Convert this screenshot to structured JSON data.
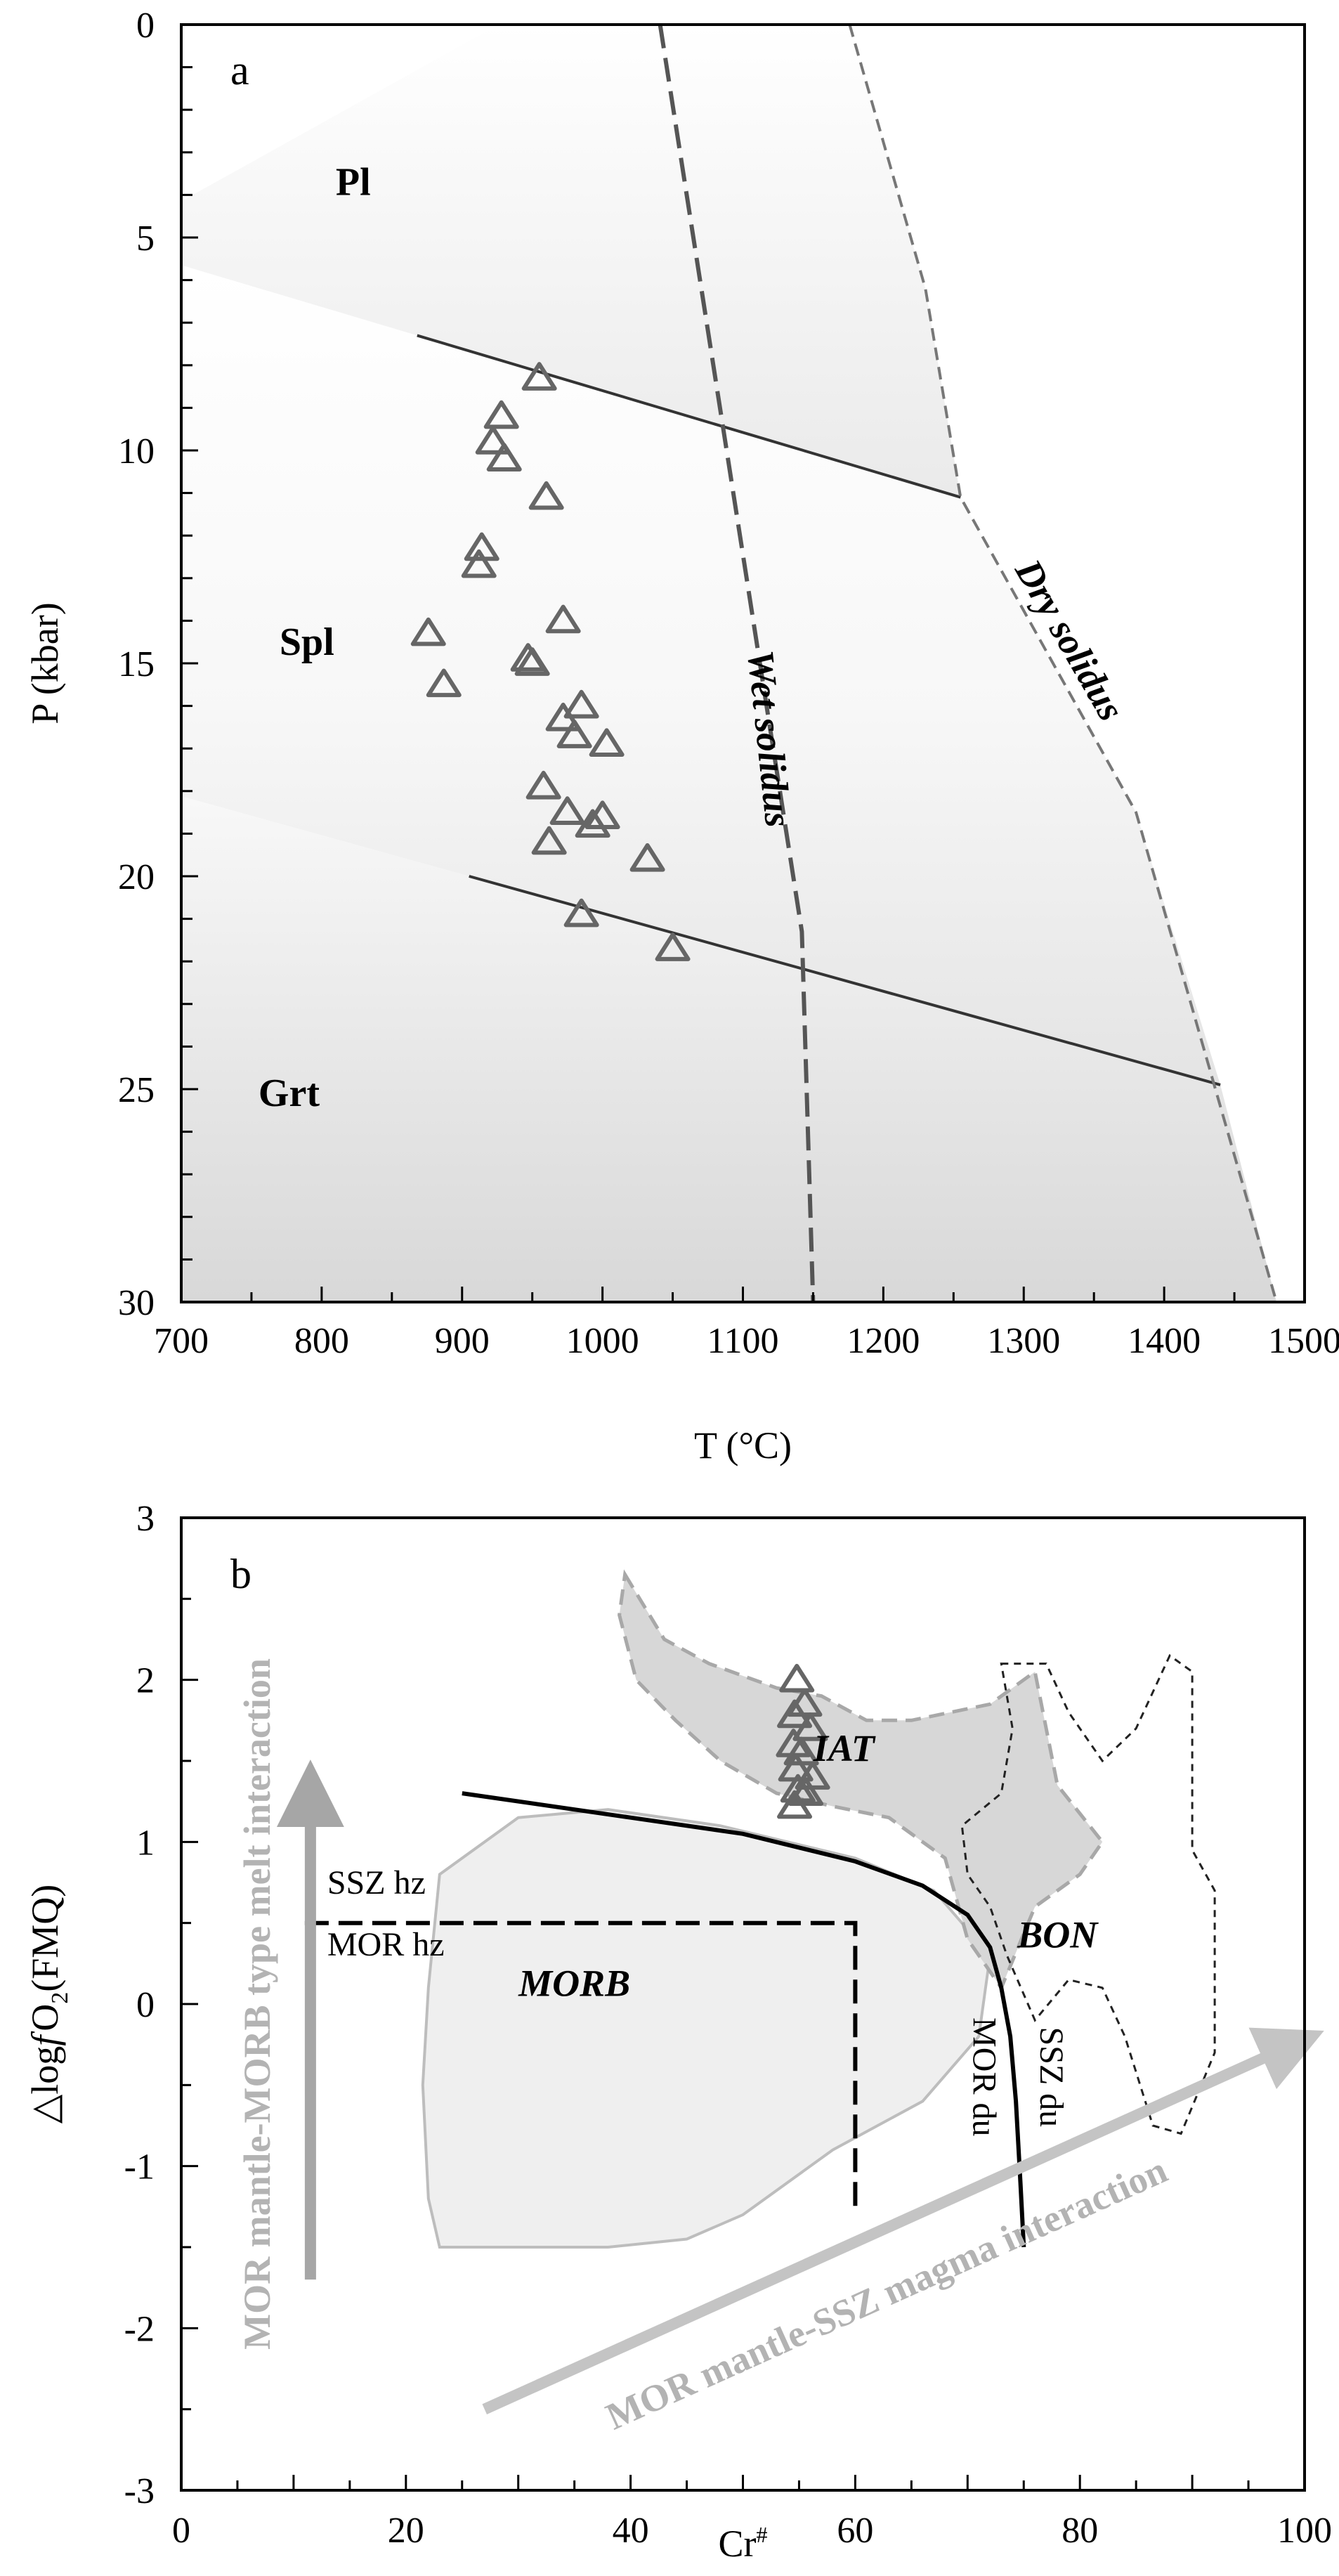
{
  "chart_data": [
    {
      "panel": "a",
      "type": "scatter",
      "title": "",
      "xlabel": "T (°C)",
      "ylabel": "P (kbar)",
      "xlim": [
        700,
        1500
      ],
      "ylim": [
        0,
        30
      ],
      "y_inverted": true,
      "x_ticks": [
        700,
        800,
        900,
        1000,
        1100,
        1200,
        1300,
        1400,
        1500
      ],
      "y_ticks": [
        0,
        5,
        10,
        15,
        20,
        25,
        30
      ],
      "marker": "open-triangle",
      "marker_color": "#666666",
      "points": [
        {
          "x": 955,
          "y": 8.3
        },
        {
          "x": 928,
          "y": 9.2
        },
        {
          "x": 922,
          "y": 9.8
        },
        {
          "x": 930,
          "y": 10.2
        },
        {
          "x": 960,
          "y": 11.1
        },
        {
          "x": 914,
          "y": 12.3
        },
        {
          "x": 912,
          "y": 12.7
        },
        {
          "x": 972,
          "y": 14.0
        },
        {
          "x": 876,
          "y": 14.3
        },
        {
          "x": 947,
          "y": 14.9
        },
        {
          "x": 950,
          "y": 15.0
        },
        {
          "x": 887,
          "y": 15.5
        },
        {
          "x": 985,
          "y": 16.0
        },
        {
          "x": 972,
          "y": 16.3
        },
        {
          "x": 980,
          "y": 16.7
        },
        {
          "x": 1003,
          "y": 16.9
        },
        {
          "x": 958,
          "y": 17.9
        },
        {
          "x": 975,
          "y": 18.5
        },
        {
          "x": 1000,
          "y": 18.6
        },
        {
          "x": 993,
          "y": 18.8
        },
        {
          "x": 962,
          "y": 19.2
        },
        {
          "x": 1032,
          "y": 19.6
        },
        {
          "x": 985,
          "y": 20.9
        },
        {
          "x": 1050,
          "y": 21.7
        }
      ],
      "boundaries": [
        {
          "name": "plagioclase-spinel",
          "points": [
            [
              868,
              7.3
            ],
            [
              1255,
              11.1
            ]
          ],
          "style": "solid"
        },
        {
          "name": "spinel-garnet",
          "points": [
            [
              905,
              20.0
            ],
            [
              1440,
              24.9
            ]
          ],
          "style": "solid"
        },
        {
          "name": "wet-solidus",
          "points": [
            [
              1041,
              0
            ],
            [
              1142,
              21.3
            ],
            [
              1150,
              30
            ]
          ],
          "style": "dashed"
        },
        {
          "name": "dry-solidus",
          "points": [
            [
              1176,
              0
            ],
            [
              1230,
              6.2
            ],
            [
              1255,
              11.1
            ],
            [
              1380,
              18.5
            ],
            [
              1480,
              30
            ]
          ],
          "style": "dashed"
        }
      ],
      "field_labels": [
        {
          "text": "Pl",
          "x": 810,
          "y": 4.0
        },
        {
          "text": "Spl",
          "x": 770,
          "y": 14.8
        },
        {
          "text": "Grt",
          "x": 755,
          "y": 25.4
        }
      ],
      "curve_labels": [
        {
          "text": "Wet solidus",
          "x": 1110,
          "y": 16.8,
          "angle": 84
        },
        {
          "text": "Dry solidus",
          "x": 1325,
          "y": 14.6,
          "angle": 60
        }
      ]
    },
    {
      "panel": "b",
      "type": "scatter",
      "title": "",
      "xlabel": "Cr#",
      "ylabel": "△log fO2(FMQ)",
      "xlim": [
        0,
        100
      ],
      "ylim": [
        -3,
        3
      ],
      "x_ticks": [
        0,
        20,
        40,
        60,
        80,
        100
      ],
      "y_ticks": [
        -3,
        -2,
        -1,
        0,
        1,
        2,
        3
      ],
      "marker": "open-triangle",
      "marker_color": "#666666",
      "points": [
        {
          "x": 54.8,
          "y": 2.0
        },
        {
          "x": 55.5,
          "y": 1.85
        },
        {
          "x": 54.6,
          "y": 1.78
        },
        {
          "x": 56.0,
          "y": 1.7
        },
        {
          "x": 54.5,
          "y": 1.6
        },
        {
          "x": 55.2,
          "y": 1.55
        },
        {
          "x": 54.7,
          "y": 1.45
        },
        {
          "x": 56.2,
          "y": 1.4
        },
        {
          "x": 54.9,
          "y": 1.32
        },
        {
          "x": 55.6,
          "y": 1.3
        },
        {
          "x": 54.6,
          "y": 1.22
        }
      ],
      "fields": [
        {
          "text": "MORB",
          "style": "solid-grey",
          "label_pos": [
            35,
            0.05
          ],
          "points": [
            [
              23,
              0.8
            ],
            [
              30,
              1.15
            ],
            [
              38,
              1.2
            ],
            [
              48,
              1.1
            ],
            [
              60,
              0.9
            ],
            [
              67,
              0.7
            ],
            [
              72,
              0.3
            ],
            [
              71,
              -0.2
            ],
            [
              66,
              -0.6
            ],
            [
              58,
              -0.9
            ],
            [
              50,
              -1.3
            ],
            [
              45,
              -1.45
            ],
            [
              38,
              -1.5
            ],
            [
              30,
              -1.5
            ],
            [
              23,
              -1.5
            ],
            [
              22,
              -1.2
            ],
            [
              21.5,
              -0.5
            ],
            [
              22,
              0.1
            ]
          ]
        },
        {
          "text": "IAT",
          "style": "dashed-grey",
          "label_pos": [
            59,
            1.5
          ],
          "points": [
            [
              39.5,
              2.65
            ],
            [
              43,
              2.25
            ],
            [
              47,
              2.1
            ],
            [
              53,
              1.95
            ],
            [
              57,
              1.9
            ],
            [
              61,
              1.75
            ],
            [
              65,
              1.75
            ],
            [
              72,
              1.85
            ],
            [
              76,
              2.05
            ],
            [
              78,
              1.35
            ],
            [
              82,
              1.0
            ],
            [
              80,
              0.8
            ],
            [
              76,
              0.6
            ],
            [
              73,
              0.1
            ],
            [
              70,
              0.4
            ],
            [
              68,
              0.9
            ],
            [
              63,
              1.15
            ],
            [
              58,
              1.22
            ],
            [
              53,
              1.3
            ],
            [
              48,
              1.5
            ],
            [
              44,
              1.75
            ],
            [
              40.5,
              2.0
            ],
            [
              39,
              2.4
            ]
          ]
        },
        {
          "text": "BON",
          "style": "dashed-black",
          "label_pos": [
            78,
            0.35
          ],
          "points": [
            [
              73,
              2.1
            ],
            [
              77,
              2.1
            ],
            [
              79,
              1.8
            ],
            [
              82,
              1.5
            ],
            [
              85,
              1.7
            ],
            [
              88,
              2.15
            ],
            [
              90,
              2.05
            ],
            [
              90,
              0.95
            ],
            [
              92,
              0.7
            ],
            [
              92,
              -0.3
            ],
            [
              89,
              -0.8
            ],
            [
              86.5,
              -0.75
            ],
            [
              84,
              -0.2
            ],
            [
              82,
              0.1
            ],
            [
              79,
              0.15
            ],
            [
              76,
              -0.1
            ],
            [
              73.5,
              0.3
            ],
            [
              72,
              0.6
            ],
            [
              70,
              0.8
            ],
            [
              69.5,
              1.1
            ],
            [
              73,
              1.3
            ],
            [
              74,
              1.7
            ]
          ]
        }
      ],
      "boundaries": [
        {
          "name": "dunite-curve",
          "style": "solid-black",
          "points": [
            [
              25,
              1.3
            ],
            [
              40,
              1.15
            ],
            [
              50,
              1.05
            ],
            [
              60,
              0.88
            ],
            [
              66,
              0.73
            ],
            [
              70,
              0.55
            ],
            [
              72,
              0.35
            ],
            [
              73,
              0.1
            ],
            [
              73.8,
              -0.2
            ],
            [
              74.3,
              -0.6
            ],
            [
              74.7,
              -1.1
            ],
            [
              75,
              -1.5
            ]
          ]
        },
        {
          "name": "harzburgite-boundary",
          "style": "dashed-black",
          "points": [
            [
              11,
              0.5
            ],
            [
              60,
              0.5
            ],
            [
              60,
              -1.3
            ]
          ]
        }
      ],
      "curve_labels": [
        {
          "text": "SSZ hz",
          "x": 13,
          "y": 0.68
        },
        {
          "text": "MOR hz",
          "x": 13,
          "y": 0.3
        },
        {
          "text": "MOR du",
          "x": 70.5,
          "y": -0.45,
          "angle": 90
        },
        {
          "text": "SSZ du",
          "x": 76.5,
          "y": -0.45,
          "angle": 90
        }
      ],
      "arrows": [
        {
          "text": "MOR mantle-MORB type melt interaction",
          "from": [
            11.5,
            -1.7
          ],
          "to": [
            11.5,
            1.3
          ],
          "color": "#a6a6a6"
        },
        {
          "text": "MOR mantle-SSZ magma interaction",
          "from": [
            27,
            -2.5
          ],
          "to": [
            99,
            -0.25
          ],
          "color": "#c4c4c4"
        }
      ]
    }
  ],
  "ui": {
    "panel_a_label": "a",
    "panel_b_label": "b",
    "xlabel_a": "T (°C)",
    "ylabel_a": "P (kbar)",
    "xlabel_b_main": "Cr",
    "xlabel_b_sup": "#",
    "ylabel_b_prefix": "△log",
    "ylabel_b_f": "f",
    "ylabel_b_o": "O",
    "ylabel_b_sub": "2",
    "ylabel_b_suffix": "(FMQ)",
    "arrow_vertical_label": "MOR mantle-MORB type melt interaction",
    "arrow_diagonal_label": "MOR mantle-SSZ magma interaction"
  }
}
